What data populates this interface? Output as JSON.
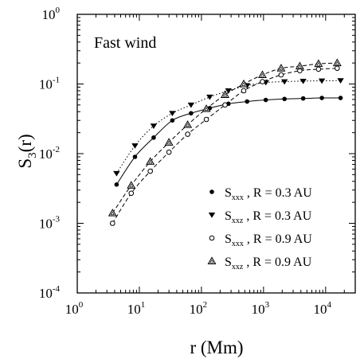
{
  "chart_data": {
    "type": "scatter",
    "x_scale": "log",
    "y_scale": "log",
    "xlim": [
      1,
      30000
    ],
    "ylim": [
      0.0001,
      1
    ],
    "xlabel": "r (Mm)",
    "ylabel_main": "S",
    "ylabel_sub": "3",
    "ylabel_suffix": "(r)",
    "annotation": "Fast wind",
    "legend_position": "lower-right",
    "x_ticks": [
      {
        "value": 1,
        "base": "10",
        "exp": "0"
      },
      {
        "value": 10,
        "base": "10",
        "exp": "1"
      },
      {
        "value": 100,
        "base": "10",
        "exp": "2"
      },
      {
        "value": 1000,
        "base": "10",
        "exp": "3"
      },
      {
        "value": 10000,
        "base": "10",
        "exp": "4"
      }
    ],
    "y_ticks": [
      {
        "value": 0.0001,
        "base": "10",
        "exp": "-4"
      },
      {
        "value": 0.001,
        "base": "10",
        "exp": "-3"
      },
      {
        "value": 0.01,
        "base": "10",
        "exp": "-2"
      },
      {
        "value": 0.1,
        "base": "10",
        "exp": "-1"
      },
      {
        "value": 1,
        "base": "10",
        "exp": "0"
      }
    ],
    "series": [
      {
        "label_main": "S",
        "label_sub": "xxx",
        "label_rest": " , R = 0.3 AU",
        "marker": "filled-circle",
        "line": "solid",
        "x": [
          4.3,
          8.5,
          17,
          34,
          68,
          136,
          272,
          544,
          1088,
          2176,
          4352,
          8704,
          17408
        ],
        "y": [
          0.0036,
          0.009,
          0.017,
          0.03,
          0.038,
          0.045,
          0.052,
          0.056,
          0.059,
          0.061,
          0.062,
          0.063,
          0.063
        ]
      },
      {
        "label_main": "S",
        "label_sub": "xxz",
        "label_rest": " , R = 0.3 AU",
        "marker": "filled-triangle-down",
        "line": "dotted",
        "x": [
          4.3,
          8.5,
          17,
          34,
          68,
          136,
          272,
          544,
          1088,
          2176,
          4352,
          8704,
          17408
        ],
        "y": [
          0.0052,
          0.013,
          0.025,
          0.038,
          0.05,
          0.065,
          0.08,
          0.095,
          0.105,
          0.108,
          0.11,
          0.111,
          0.112
        ]
      },
      {
        "label_main": "S",
        "label_sub": "xxx",
        "label_rest": " , R = 0.9 AU",
        "marker": "open-circle",
        "line": "dashed",
        "x": [
          3.7,
          7.4,
          15,
          30,
          60,
          120,
          240,
          480,
          960,
          1920,
          3840,
          7680,
          15360
        ],
        "y": [
          0.001,
          0.0027,
          0.0056,
          0.0105,
          0.019,
          0.031,
          0.05,
          0.08,
          0.108,
          0.135,
          0.155,
          0.163,
          0.168
        ]
      },
      {
        "label_main": "S",
        "label_sub": "xxz",
        "label_rest": " , R = 0.9 AU",
        "marker": "open-triangle-up",
        "line": "dashed",
        "x": [
          3.7,
          7.4,
          15,
          30,
          60,
          120,
          240,
          480,
          960,
          1920,
          3840,
          7680,
          15360
        ],
        "y": [
          0.0014,
          0.0035,
          0.0077,
          0.0145,
          0.026,
          0.044,
          0.07,
          0.1,
          0.135,
          0.168,
          0.18,
          0.195,
          0.2
        ]
      }
    ]
  }
}
